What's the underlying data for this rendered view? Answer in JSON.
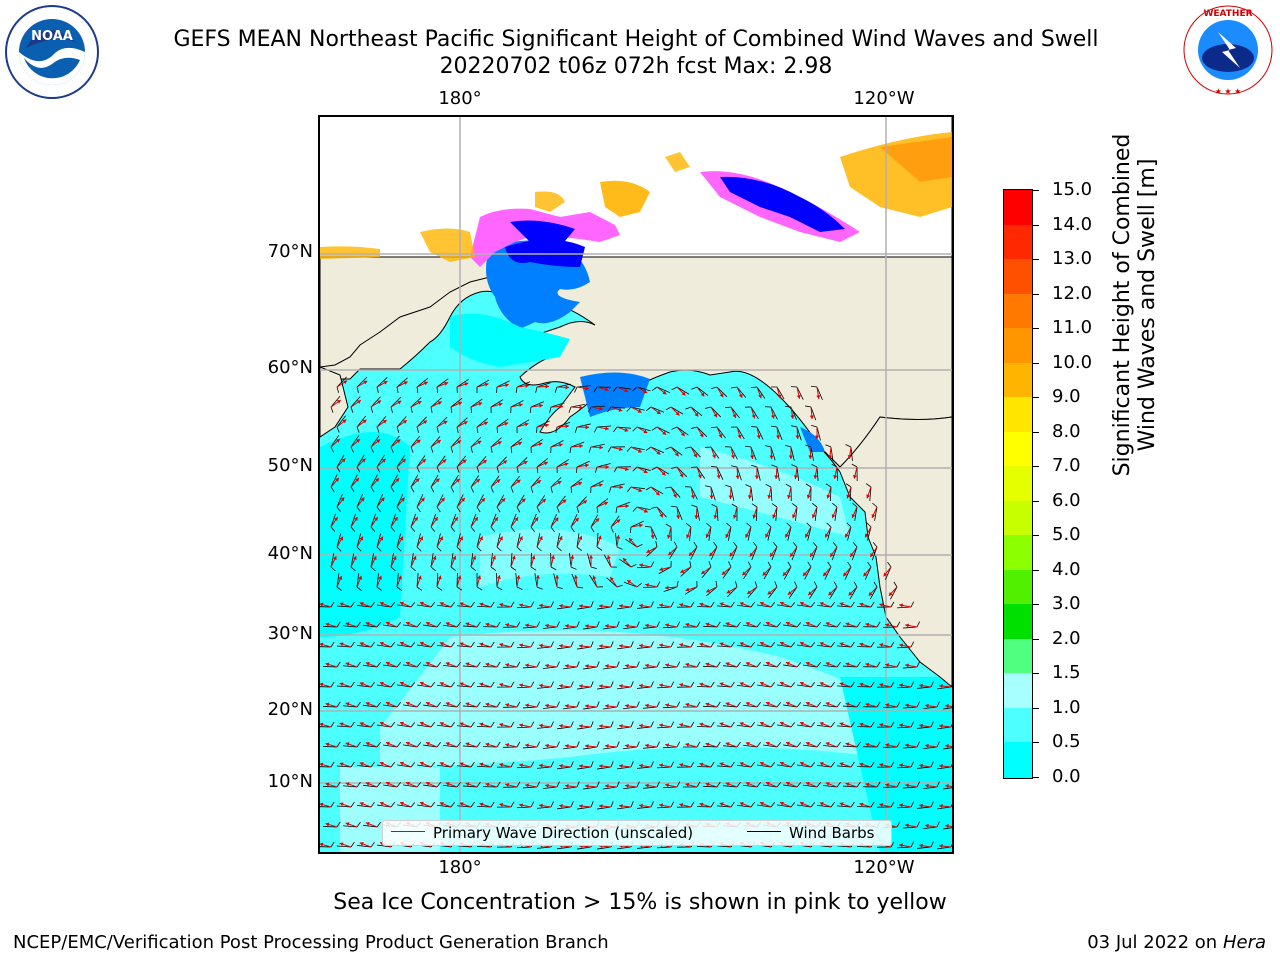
{
  "header": {
    "title_line1": "GEFS MEAN Northeast Pacific Significant Height of Combined Wind Waves and Swell",
    "title_line2": "20220702 t06z 072h fcst   Max: 2.98"
  },
  "logos": {
    "left": {
      "icon": "noaa-logo-icon",
      "text": "NOAA"
    },
    "right": {
      "icon": "nws-logo-icon",
      "text": "NATIONAL WEATHER SERVICE"
    }
  },
  "map": {
    "lat_labels": [
      "70°N",
      "60°N",
      "50°N",
      "40°N",
      "30°N",
      "20°N",
      "10°N"
    ],
    "lon_labels_top": [
      "180°",
      "120°W"
    ],
    "lon_labels_bottom": [
      "180°",
      "120°W"
    ],
    "colors": {
      "land": "#efecdc",
      "ocean_low": "#00ffff",
      "ocean_mid": "#4dffff",
      "ocean_high": "#a8ffff",
      "grid": "#b0b0b0",
      "wave_arrow": "#e00000",
      "wind_barb": "#000000"
    }
  },
  "legend": {
    "wave": "Primary Wave Direction (unscaled)",
    "wind": "Wind Barbs"
  },
  "colorbar": {
    "label_line1": "Significant Height of Combined",
    "label_line2": "Wind Waves and Swell [m]",
    "ticks": [
      "15.0",
      "14.0",
      "13.0",
      "12.0",
      "11.0",
      "10.0",
      "9.0",
      "8.0",
      "7.0",
      "6.0",
      "5.0",
      "4.0",
      "3.0",
      "2.0",
      "1.5",
      "1.0",
      "0.5",
      "0.0"
    ],
    "colors_top_to_bottom": [
      "#ff0000",
      "#ff2800",
      "#ff5000",
      "#ff7800",
      "#ff9600",
      "#ffb400",
      "#ffe600",
      "#ffff00",
      "#e6ff00",
      "#c8ff00",
      "#8cff00",
      "#50f000",
      "#00e000",
      "#50ff80",
      "#a8ffff",
      "#4dffff",
      "#00ffff",
      "#0080ff",
      "#0000ff"
    ]
  },
  "footer": {
    "subtitle": "Sea Ice Concentration > 15% is shown in pink to yellow",
    "credit_left": "NCEP/EMC/Verification Post Processing Product Generation Branch",
    "credit_right_date": "03 Jul 2022 on ",
    "credit_right_host": "Hera"
  }
}
